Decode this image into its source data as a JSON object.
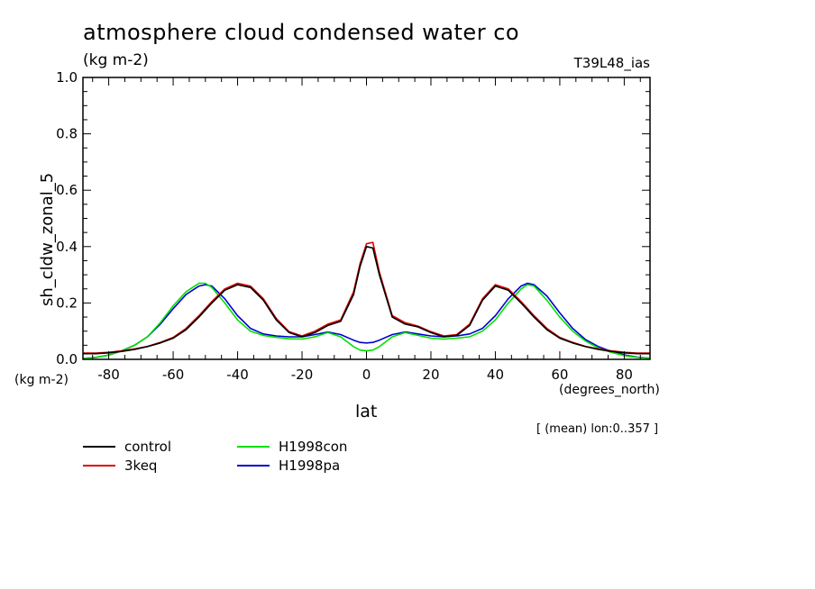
{
  "chart_data": {
    "type": "line",
    "title": "atmosphere cloud condensed water co",
    "units": "(kg m-2)",
    "model_label": "T39L48_ias",
    "xlabel": "lat",
    "ylabel": "sh_cldw_zonal_5",
    "x_units": "(degrees_north)",
    "y_units": "(kg m-2)",
    "note": "[ (mean) lon:0..357 ]",
    "xlim": [
      -88,
      88
    ],
    "ylim": [
      0,
      1.0
    ],
    "xticks": [
      -80,
      -60,
      -40,
      -20,
      0,
      20,
      40,
      60,
      80
    ],
    "xtick_labels": [
      "-80",
      "-60",
      "-40",
      "-20",
      "0",
      "20",
      "40",
      "60",
      "80"
    ],
    "yticks": [
      0,
      0.2,
      0.4,
      0.6,
      0.8,
      1.0
    ],
    "ytick_labels": [
      "0.0",
      "0.2",
      "0.4",
      "0.6",
      "0.8",
      "1.0"
    ],
    "grid": false,
    "legend_position": "below",
    "x": [
      -88,
      -84,
      -80,
      -76,
      -72,
      -68,
      -64,
      -60,
      -56,
      -52,
      -50,
      -48,
      -44,
      -40,
      -36,
      -32,
      -28,
      -24,
      -20,
      -16,
      -12,
      -8,
      -4,
      -2,
      0,
      2,
      4,
      8,
      12,
      16,
      20,
      24,
      28,
      32,
      36,
      40,
      44,
      48,
      50,
      52,
      56,
      60,
      64,
      68,
      72,
      76,
      80,
      84,
      88
    ],
    "series": [
      {
        "name": "control",
        "color": "#000000",
        "values": [
          0.02,
          0.02,
          0.023,
          0.028,
          0.035,
          0.045,
          0.058,
          0.075,
          0.105,
          0.15,
          0.175,
          0.2,
          0.245,
          0.265,
          0.255,
          0.21,
          0.14,
          0.095,
          0.08,
          0.095,
          0.12,
          0.135,
          0.23,
          0.33,
          0.4,
          0.395,
          0.3,
          0.15,
          0.125,
          0.115,
          0.095,
          0.08,
          0.085,
          0.12,
          0.21,
          0.26,
          0.245,
          0.2,
          0.175,
          0.15,
          0.105,
          0.075,
          0.058,
          0.045,
          0.035,
          0.028,
          0.023,
          0.02,
          0.02
        ]
      },
      {
        "name": "3keq",
        "color": "#e00000",
        "values": [
          0.022,
          0.022,
          0.025,
          0.03,
          0.037,
          0.046,
          0.06,
          0.078,
          0.11,
          0.155,
          0.18,
          0.205,
          0.25,
          0.27,
          0.26,
          0.215,
          0.145,
          0.098,
          0.083,
          0.1,
          0.125,
          0.14,
          0.24,
          0.34,
          0.41,
          0.415,
          0.31,
          0.155,
          0.13,
          0.118,
          0.098,
          0.083,
          0.088,
          0.125,
          0.215,
          0.265,
          0.25,
          0.205,
          0.18,
          0.155,
          0.11,
          0.078,
          0.06,
          0.046,
          0.037,
          0.03,
          0.025,
          0.022,
          0.022
        ]
      },
      {
        "name": "H1998con",
        "color": "#00e000",
        "values": [
          0.003,
          0.007,
          0.015,
          0.03,
          0.05,
          0.08,
          0.13,
          0.19,
          0.24,
          0.27,
          0.27,
          0.255,
          0.2,
          0.14,
          0.1,
          0.085,
          0.078,
          0.073,
          0.072,
          0.08,
          0.095,
          0.08,
          0.045,
          0.033,
          0.03,
          0.033,
          0.045,
          0.08,
          0.095,
          0.085,
          0.075,
          0.072,
          0.075,
          0.08,
          0.1,
          0.14,
          0.2,
          0.25,
          0.265,
          0.26,
          0.21,
          0.15,
          0.1,
          0.065,
          0.04,
          0.025,
          0.013,
          0.007,
          0.004
        ]
      },
      {
        "name": "H1998pa",
        "color": "#0000d0",
        "values": [
          0.003,
          0.007,
          0.015,
          0.03,
          0.05,
          0.08,
          0.125,
          0.18,
          0.23,
          0.26,
          0.265,
          0.26,
          0.215,
          0.155,
          0.11,
          0.09,
          0.083,
          0.08,
          0.08,
          0.088,
          0.097,
          0.088,
          0.068,
          0.06,
          0.058,
          0.06,
          0.068,
          0.088,
          0.097,
          0.09,
          0.083,
          0.08,
          0.083,
          0.09,
          0.11,
          0.155,
          0.215,
          0.26,
          0.27,
          0.265,
          0.225,
          0.165,
          0.11,
          0.07,
          0.045,
          0.028,
          0.016,
          0.008,
          0.004
        ]
      }
    ]
  }
}
